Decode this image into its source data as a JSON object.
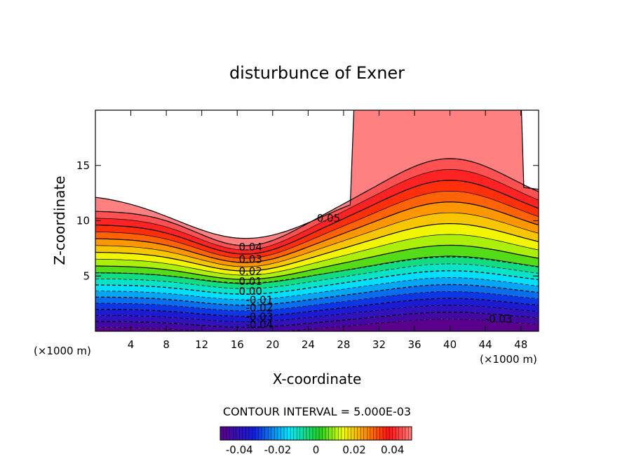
{
  "chart_data": {
    "type": "contour",
    "title": "disturbunce of Exner",
    "xlabel": "X-coordinate",
    "ylabel": "Z-coordinate",
    "x_unit_left": "(×1000 m)",
    "x_unit_right": "(×1000 m)",
    "xlim": [
      0,
      50
    ],
    "ylim": [
      0,
      20
    ],
    "x_ticks": [
      4,
      8,
      12,
      16,
      20,
      24,
      28,
      32,
      36,
      40,
      44,
      48
    ],
    "y_ticks": [
      5,
      10,
      15
    ],
    "contour_labels": [
      {
        "text": "0.05",
        "x": 26.3,
        "z": 9.9
      },
      {
        "text": "0.04",
        "x": 17.5,
        "z": 7.3
      },
      {
        "text": "0.03",
        "x": 17.5,
        "z": 6.2
      },
      {
        "text": "0.02",
        "x": 17.5,
        "z": 5.1
      },
      {
        "text": "0.01",
        "x": 17.5,
        "z": 4.2
      },
      {
        "text": "0.00",
        "x": 17.5,
        "z": 3.3
      },
      {
        "text": "-0.01",
        "x": 18.5,
        "z": 2.5
      },
      {
        "text": "-0.02",
        "x": 18.5,
        "z": 1.8
      },
      {
        "text": "-0.03",
        "x": 18.5,
        "z": 1.0
      },
      {
        "text": "-0.04",
        "x": 18.5,
        "z": 0.3
      },
      {
        "text": "-0.03",
        "x": 45.5,
        "z": 0.8
      }
    ],
    "contour_interval_label": "CONTOUR INTERVAL = 5.000E-03",
    "colorbar": {
      "range": [
        -0.05,
        0.05
      ],
      "tick_values": [
        -0.04,
        -0.02,
        0,
        0.02,
        0.04
      ],
      "tick_labels": [
        "-0.04",
        "-0.02",
        "0",
        "0.02",
        "0.04"
      ]
    },
    "colors": {
      "min": "#5a008c",
      "blue": "#1020e0",
      "cyan": "#00e8ff",
      "green": "#20d020",
      "yellow": "#f0ff00",
      "orange": "#ff8c00",
      "red": "#ff1010",
      "max": "#ff8080"
    }
  }
}
